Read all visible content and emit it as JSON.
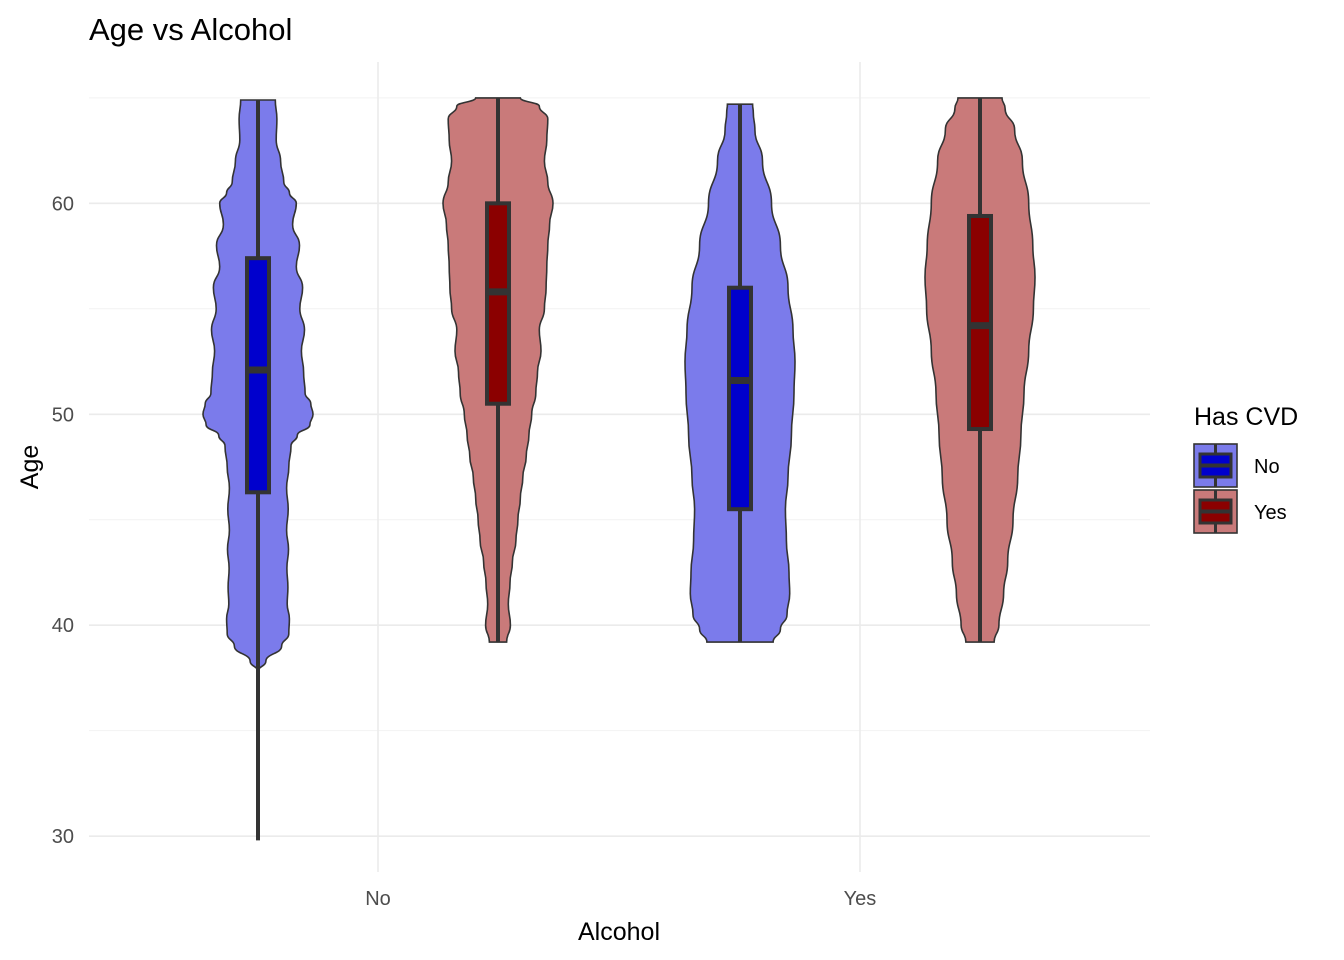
{
  "chart_data": {
    "type": "violin",
    "title": "Age vs Alcohol",
    "xlabel": "Alcohol",
    "ylabel": "Age",
    "categories": [
      "No",
      "Yes"
    ],
    "ylim": [
      28.3,
      66.7
    ],
    "yticks": [
      30,
      40,
      50,
      60
    ],
    "grid": true,
    "legend": {
      "title": "Has CVD",
      "position": "right",
      "entries": [
        "No",
        "Yes"
      ]
    },
    "colors": {
      "No": {
        "violin": "#7b7beb",
        "box": "#0000cd"
      },
      "Yes": {
        "violin": "#c97a7a",
        "box": "#8b0000"
      },
      "outline": "#333333"
    },
    "series": [
      {
        "name": "No",
        "groups": [
          {
            "category": "No",
            "box": {
              "min": 29.8,
              "q1": 46.3,
              "median": 52.1,
              "q3": 57.4,
              "max": 64.9
            },
            "density": [
              [
                37.8,
                0.0
              ],
              [
                38.3,
                0.25
              ],
              [
                39.0,
                0.75
              ],
              [
                39.6,
                0.98
              ],
              [
                40.3,
                1.0
              ],
              [
                41.0,
                0.93
              ],
              [
                41.8,
                0.95
              ],
              [
                42.7,
                0.92
              ],
              [
                43.6,
                0.97
              ],
              [
                44.5,
                0.91
              ],
              [
                45.5,
                0.96
              ],
              [
                46.5,
                0.91
              ],
              [
                47.5,
                0.98
              ],
              [
                48.5,
                1.05
              ],
              [
                49.0,
                1.25
              ],
              [
                49.5,
                1.65
              ],
              [
                50.0,
                1.75
              ],
              [
                50.5,
                1.68
              ],
              [
                51.0,
                1.5
              ],
              [
                52.0,
                1.45
              ],
              [
                53.0,
                1.38
              ],
              [
                54.0,
                1.48
              ],
              [
                55.0,
                1.33
              ],
              [
                56.0,
                1.42
              ],
              [
                57.0,
                1.22
              ],
              [
                58.0,
                1.32
              ],
              [
                59.0,
                1.1
              ],
              [
                60.0,
                1.22
              ],
              [
                60.5,
                1.0
              ],
              [
                61.0,
                0.82
              ],
              [
                62.0,
                0.72
              ],
              [
                63.0,
                0.58
              ],
              [
                64.0,
                0.6
              ],
              [
                64.9,
                0.55
              ]
            ]
          },
          {
            "category": "Yes",
            "box": {
              "min": 39.2,
              "q1": 45.5,
              "median": 51.6,
              "q3": 56.0,
              "max": 64.7
            },
            "density": [
              [
                39.2,
                1.0
              ],
              [
                39.8,
                1.22
              ],
              [
                40.5,
                1.42
              ],
              [
                41.5,
                1.5
              ],
              [
                42.5,
                1.48
              ],
              [
                44.0,
                1.4
              ],
              [
                45.5,
                1.37
              ],
              [
                47.0,
                1.45
              ],
              [
                49.0,
                1.55
              ],
              [
                51.0,
                1.63
              ],
              [
                52.5,
                1.66
              ],
              [
                54.0,
                1.6
              ],
              [
                56.0,
                1.45
              ],
              [
                58.0,
                1.22
              ],
              [
                60.0,
                0.95
              ],
              [
                62.0,
                0.68
              ],
              [
                63.5,
                0.45
              ],
              [
                64.3,
                0.4
              ],
              [
                64.7,
                0.38
              ]
            ]
          }
        ]
      },
      {
        "name": "Yes",
        "groups": [
          {
            "category": "No",
            "box": {
              "min": 39.2,
              "q1": 50.5,
              "median": 55.8,
              "q3": 60.0,
              "max": 65.0
            },
            "density": [
              [
                39.2,
                0.25
              ],
              [
                40.0,
                0.36
              ],
              [
                41.0,
                0.3
              ],
              [
                42.0,
                0.35
              ],
              [
                43.0,
                0.42
              ],
              [
                44.0,
                0.52
              ],
              [
                45.0,
                0.58
              ],
              [
                46.0,
                0.65
              ],
              [
                47.0,
                0.72
              ],
              [
                48.0,
                0.82
              ],
              [
                49.0,
                0.9
              ],
              [
                50.0,
                0.98
              ],
              [
                51.0,
                1.1
              ],
              [
                52.0,
                1.15
              ],
              [
                53.0,
                1.25
              ],
              [
                54.0,
                1.2
              ],
              [
                55.0,
                1.35
              ],
              [
                56.0,
                1.4
              ],
              [
                57.0,
                1.42
              ],
              [
                58.0,
                1.45
              ],
              [
                59.0,
                1.5
              ],
              [
                60.0,
                1.6
              ],
              [
                61.0,
                1.45
              ],
              [
                62.0,
                1.35
              ],
              [
                63.0,
                1.42
              ],
              [
                64.0,
                1.45
              ],
              [
                64.6,
                1.2
              ],
              [
                65.0,
                0.65
              ]
            ]
          },
          {
            "category": "Yes",
            "box": {
              "min": 39.2,
              "q1": 49.3,
              "median": 54.2,
              "q3": 59.4,
              "max": 65.0
            },
            "density": [
              [
                39.2,
                0.45
              ],
              [
                40.0,
                0.6
              ],
              [
                41.5,
                0.75
              ],
              [
                43.0,
                0.88
              ],
              [
                45.0,
                1.05
              ],
              [
                47.0,
                1.2
              ],
              [
                49.0,
                1.3
              ],
              [
                51.0,
                1.4
              ],
              [
                53.0,
                1.55
              ],
              [
                55.0,
                1.7
              ],
              [
                56.5,
                1.75
              ],
              [
                58.0,
                1.68
              ],
              [
                60.0,
                1.55
              ],
              [
                62.0,
                1.35
              ],
              [
                63.5,
                1.1
              ],
              [
                64.5,
                0.8
              ],
              [
                65.0,
                0.7
              ]
            ]
          }
        ]
      }
    ]
  }
}
